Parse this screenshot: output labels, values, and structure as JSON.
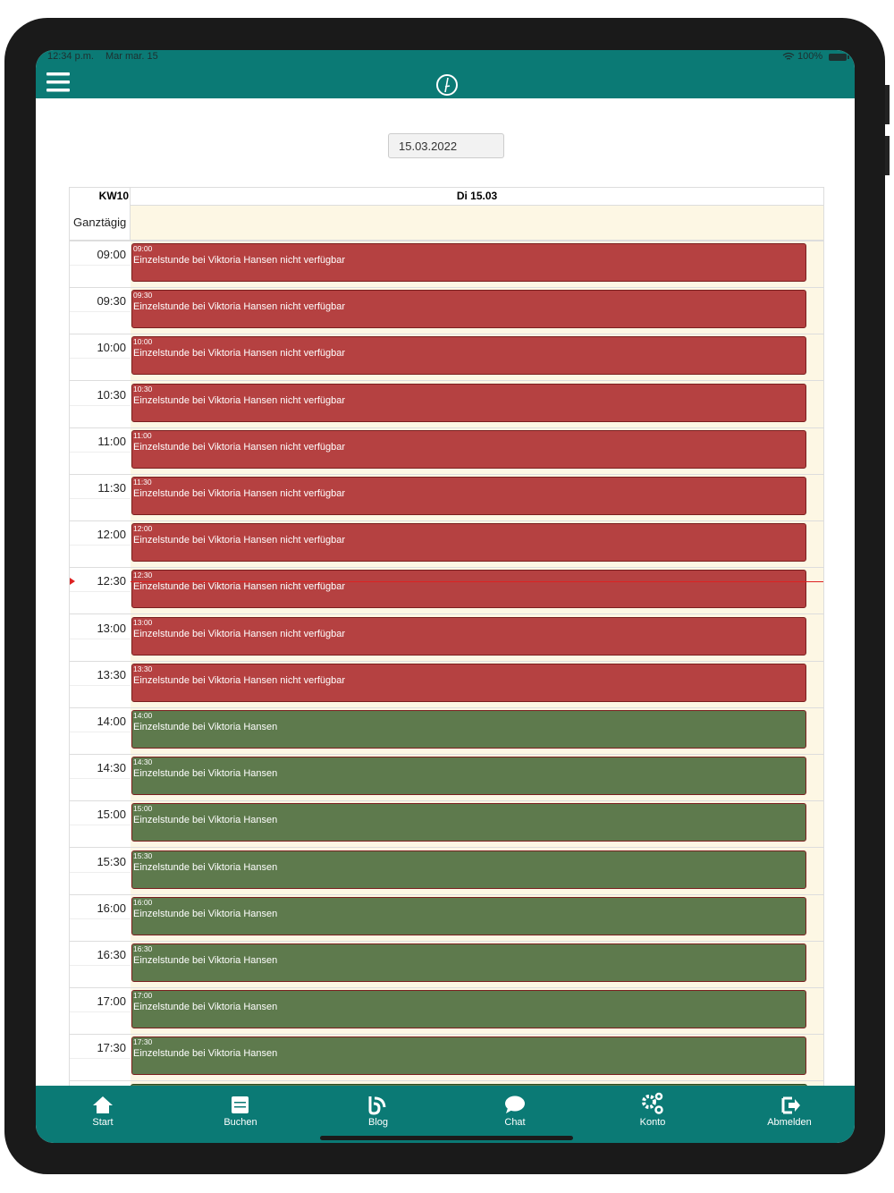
{
  "status_bar": {
    "time": "12:34 p.m.",
    "date": "Mar mar. 15",
    "battery": "100%"
  },
  "date_field": "15.03.2022",
  "calendar": {
    "week": "KW10",
    "day": "Di 15.03",
    "all_day": "Ganztägig",
    "events": [
      {
        "time": "09:00",
        "title": "Einzelstunde bei Viktoria Hansen nicht verfügbar",
        "color": "#b54141"
      },
      {
        "time": "09:30",
        "title": "Einzelstunde bei Viktoria Hansen nicht verfügbar",
        "color": "#b54141"
      },
      {
        "time": "10:00",
        "title": "Einzelstunde bei Viktoria Hansen nicht verfügbar",
        "color": "#b54141"
      },
      {
        "time": "10:30",
        "title": "Einzelstunde bei Viktoria Hansen nicht verfügbar",
        "color": "#b54141"
      },
      {
        "time": "11:00",
        "title": "Einzelstunde bei Viktoria Hansen nicht verfügbar",
        "color": "#b54141"
      },
      {
        "time": "11:30",
        "title": "Einzelstunde bei Viktoria Hansen nicht verfügbar",
        "color": "#b54141"
      },
      {
        "time": "12:00",
        "title": "Einzelstunde bei Viktoria Hansen nicht verfügbar",
        "color": "#b54141"
      },
      {
        "time": "12:30",
        "title": "Einzelstunde bei Viktoria Hansen nicht verfügbar",
        "color": "#b54141"
      },
      {
        "time": "13:00",
        "title": "Einzelstunde bei Viktoria Hansen nicht verfügbar",
        "color": "#b54141"
      },
      {
        "time": "13:30",
        "title": "Einzelstunde bei Viktoria Hansen nicht verfügbar",
        "color": "#b54141"
      },
      {
        "time": "14:00",
        "title": "Einzelstunde bei Viktoria Hansen",
        "color": "#5e7a4d"
      },
      {
        "time": "14:30",
        "title": "Einzelstunde bei Viktoria Hansen",
        "color": "#5e7a4d"
      },
      {
        "time": "15:00",
        "title": "Einzelstunde bei Viktoria Hansen",
        "color": "#5e7a4d"
      },
      {
        "time": "15:30",
        "title": "Einzelstunde bei Viktoria Hansen",
        "color": "#5e7a4d"
      },
      {
        "time": "16:00",
        "title": "Einzelstunde bei Viktoria Hansen",
        "color": "#5e7a4d"
      },
      {
        "time": "16:30",
        "title": "Einzelstunde bei Viktoria Hansen",
        "color": "#5e7a4d"
      },
      {
        "time": "17:00",
        "title": "Einzelstunde bei Viktoria Hansen",
        "color": "#5e7a4d"
      },
      {
        "time": "17:30",
        "title": "Einzelstunde bei Viktoria Hansen",
        "color": "#5e7a4d"
      }
    ]
  },
  "nav": [
    "Start",
    "Buchen",
    "Blog",
    "Chat",
    "Konto",
    "Abmelden"
  ]
}
